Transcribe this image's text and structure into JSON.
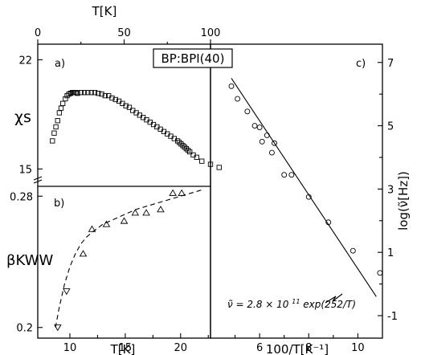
{
  "figure": {
    "title": "BP:BPI(40)",
    "top_axis_label": "T[K]",
    "top_ticks": [
      "0",
      "50",
      "100"
    ],
    "top_tick_values": [
      0,
      50,
      100
    ]
  },
  "chart_data": [
    {
      "panel": "a)",
      "type": "scatter",
      "marker": "square",
      "ylabel": "χs",
      "xaxis": "top T[K]",
      "xlim": [
        0,
        100
      ],
      "ylim": [
        14.3,
        23.0
      ],
      "yticks": [
        15,
        22
      ],
      "ytick_labels": [
        "15",
        "22"
      ],
      "x": [
        8.5,
        9.5,
        10.5,
        11.5,
        12.5,
        13.5,
        14.5,
        16,
        17,
        18,
        19,
        20,
        21,
        22,
        23,
        25,
        27,
        29,
        31,
        33,
        35,
        37,
        39,
        41,
        43,
        45,
        47,
        49,
        51,
        53,
        55,
        57,
        59,
        61,
        63,
        65,
        67,
        69,
        71,
        73,
        75,
        77,
        79,
        81,
        82,
        83,
        84,
        85,
        86,
        87,
        88,
        90,
        92,
        95,
        100,
        105
      ],
      "y": [
        16.8,
        17.3,
        17.7,
        18.1,
        18.6,
        18.9,
        19.2,
        19.5,
        19.7,
        19.8,
        19.85,
        19.9,
        19.9,
        19.9,
        19.85,
        19.9,
        19.9,
        19.9,
        19.9,
        19.9,
        19.85,
        19.8,
        19.7,
        19.7,
        19.55,
        19.45,
        19.35,
        19.2,
        19.05,
        18.95,
        18.75,
        18.6,
        18.45,
        18.3,
        18.15,
        18.0,
        17.85,
        17.7,
        17.55,
        17.4,
        17.25,
        17.1,
        16.95,
        16.8,
        16.7,
        16.6,
        16.5,
        16.4,
        16.3,
        16.2,
        16.1,
        15.9,
        15.75,
        15.5,
        15.3,
        15.1
      ]
    },
    {
      "panel": "b)",
      "type": "scatter",
      "marker": "triangle",
      "ylabel": "βKWW",
      "xlabel": "T[K]",
      "xlim": [
        7.1,
        22.7
      ],
      "ylim": [
        0.194,
        0.286
      ],
      "xticks": [
        10,
        15,
        20
      ],
      "xtick_labels": [
        "10",
        "15",
        "20"
      ],
      "yticks": [
        0.2,
        0.28
      ],
      "ytick_labels": [
        "0.2",
        "0.28"
      ],
      "points": [
        {
          "x": 8.9,
          "y": 0.2,
          "dir": "down"
        },
        {
          "x": 9.7,
          "y": 0.222,
          "dir": "down"
        },
        {
          "x": 11.2,
          "y": 0.245,
          "dir": "up"
        },
        {
          "x": 12.0,
          "y": 0.26,
          "dir": "up"
        },
        {
          "x": 13.3,
          "y": 0.263,
          "dir": "up"
        },
        {
          "x": 14.9,
          "y": 0.265,
          "dir": "up"
        },
        {
          "x": 15.9,
          "y": 0.27,
          "dir": "up"
        },
        {
          "x": 16.9,
          "y": 0.27,
          "dir": "up"
        },
        {
          "x": 18.2,
          "y": 0.272,
          "dir": "up"
        },
        {
          "x": 19.3,
          "y": 0.282,
          "dir": "up"
        },
        {
          "x": 20.1,
          "y": 0.282,
          "dir": "up"
        }
      ],
      "dashed_curve": {
        "x": [
          8.7,
          9.0,
          9.5,
          10.0,
          10.5,
          11.0,
          11.5,
          12.0,
          13.0,
          14.0,
          15.0,
          16.0,
          17.0,
          18.0,
          19.0,
          20.0,
          21.0,
          22.0
        ],
        "y": [
          0.2,
          0.211,
          0.226,
          0.237,
          0.245,
          0.251,
          0.255,
          0.258,
          0.263,
          0.266,
          0.269,
          0.272,
          0.274,
          0.276,
          0.278,
          0.28,
          0.282,
          0.284
        ]
      }
    },
    {
      "panel": "c)",
      "type": "scatter",
      "marker": "circle",
      "ylabel": "log(ν̃[Hz])",
      "xlabel": "100/T[K⁻¹]",
      "xlim": [
        4.0,
        11.0
      ],
      "ylim": [
        -1,
        7.4
      ],
      "xticks": [
        6,
        8,
        10
      ],
      "xtick_labels": [
        "6",
        "8",
        "10"
      ],
      "yticks": [
        -1,
        1,
        3,
        5,
        7
      ],
      "ytick_labels": [
        "-1",
        "1",
        "3",
        "5",
        "7"
      ],
      "x": [
        4.85,
        5.1,
        5.5,
        5.8,
        6.0,
        6.1,
        6.3,
        6.5,
        6.6,
        7.0,
        7.3,
        8.0,
        8.8,
        9.8,
        10.9
      ],
      "y": [
        6.25,
        5.85,
        5.45,
        5.0,
        4.95,
        4.5,
        4.7,
        4.15,
        4.45,
        3.45,
        3.45,
        2.75,
        1.95,
        1.05,
        0.35
      ],
      "fit": {
        "x": [
          4.85,
          10.75
        ],
        "y": [
          6.5,
          -0.4
        ],
        "annotation": "ν̃ = 2.8 × 10¹¹ exp(252/T)",
        "annotation_parts": {
          "lhs": "ν̃",
          "coef": "= 2.8 × 10",
          "exp": "11",
          "tail": "exp(252/T)"
        }
      }
    }
  ]
}
